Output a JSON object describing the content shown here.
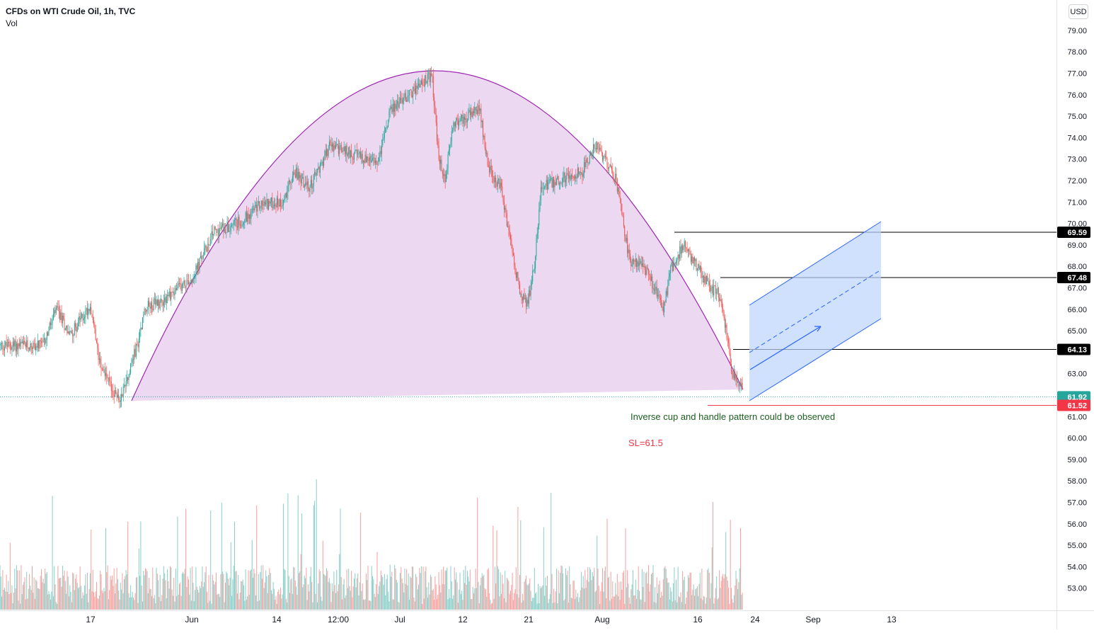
{
  "header": {
    "title": "CFDs on WTI Crude Oil, 1h, TVC",
    "indicator": "Vol",
    "currency_button": "USD"
  },
  "colors": {
    "up": "#26a69a",
    "down": "#ef5350",
    "cup_fill": "#e1bee7",
    "cup_stroke": "#9c27b0",
    "channel_fill": "#bbd4fc",
    "channel_stroke": "#2962ff",
    "line": "#000000",
    "sl_line": "#f23645",
    "current_label": "#26a69a",
    "sl_label": "#f23645",
    "annotation_text": "#1b5e20",
    "sl_text": "#f23645"
  },
  "chart_data": {
    "type": "candlestick",
    "title": "CFDs on WTI Crude Oil, 1h, TVC",
    "yaxis": {
      "range": [
        52.0,
        80.0
      ],
      "ticks": [
        53,
        54,
        55,
        56,
        57,
        58,
        59,
        60,
        61,
        62,
        63,
        64,
        65,
        66,
        67,
        68,
        69,
        70,
        71,
        72,
        73,
        74,
        75,
        76,
        77,
        78,
        79
      ]
    },
    "xaxis": {
      "ticks": [
        "17",
        "Jun",
        "14",
        "12:00",
        "Jul",
        "12",
        "21",
        "Aug",
        "16",
        "24",
        "Sep",
        "13"
      ]
    },
    "price_path": [
      [
        "2021-05-10",
        64.3
      ],
      [
        "2021-05-12",
        66.0
      ],
      [
        "2021-05-14",
        64.8
      ],
      [
        "2021-05-17",
        66.2
      ],
      [
        "2021-05-18",
        64.0
      ],
      [
        "2021-05-19",
        63.1
      ],
      [
        "2021-05-20",
        62.3
      ],
      [
        "2021-05-21",
        61.9
      ],
      [
        "2021-05-21",
        61.5
      ],
      [
        "2021-05-24",
        64.5
      ],
      [
        "2021-05-25",
        66.1
      ],
      [
        "2021-05-27",
        66.3
      ],
      [
        "2021-06-01",
        67.5
      ],
      [
        "2021-06-04",
        69.6
      ],
      [
        "2021-06-08",
        70.1
      ],
      [
        "2021-06-11",
        70.9
      ],
      [
        "2021-06-14",
        71.0
      ],
      [
        "2021-06-16",
        72.4
      ],
      [
        "2021-06-18",
        71.6
      ],
      [
        "2021-06-21",
        73.6
      ],
      [
        "2021-06-24",
        73.3
      ],
      [
        "2021-06-28",
        72.8
      ],
      [
        "2021-06-30",
        75.3
      ],
      [
        "2021-07-01",
        75.6
      ],
      [
        "2021-07-06",
        76.9
      ],
      [
        "2021-07-07",
        73.0
      ],
      [
        "2021-07-08",
        72.0
      ],
      [
        "2021-07-09",
        74.6
      ],
      [
        "2021-07-13",
        75.3
      ],
      [
        "2021-07-14",
        73.2
      ],
      [
        "2021-07-15",
        71.9
      ],
      [
        "2021-07-16",
        71.8
      ],
      [
        "2021-07-19",
        66.6
      ],
      [
        "2021-07-20",
        66.2
      ],
      [
        "2021-07-21",
        68.0
      ],
      [
        "2021-07-22",
        71.7
      ],
      [
        "2021-07-26",
        72.2
      ],
      [
        "2021-07-28",
        72.4
      ],
      [
        "2021-07-30",
        73.7
      ],
      [
        "2021-08-02",
        72.0
      ],
      [
        "2021-08-04",
        68.2
      ],
      [
        "2021-08-06",
        68.1
      ],
      [
        "2021-08-09",
        66.0
      ],
      [
        "2021-08-10",
        67.9
      ],
      [
        "2021-08-12",
        69.1
      ],
      [
        "2021-08-13",
        68.4
      ],
      [
        "2021-08-16",
        66.9
      ],
      [
        "2021-08-17",
        66.8
      ],
      [
        "2021-08-18",
        65.2
      ],
      [
        "2021-08-19",
        63.1
      ],
      [
        "2021-08-20",
        62.3
      ]
    ],
    "volume": {
      "shape": "per-bar volume histogram in lower pane"
    },
    "levels": [
      {
        "label": "69.59",
        "value": 69.59
      },
      {
        "label": "67.48",
        "value": 67.48
      },
      {
        "label": "64.13",
        "value": 64.13
      }
    ],
    "current_price": {
      "label": "61.92",
      "value": 61.92
    },
    "stop_loss": {
      "label": "61.52",
      "value": 61.52
    },
    "annotations": [
      "Inverse cup and handle pattern could be observed",
      "SL=61.5"
    ],
    "legend": "none",
    "grid": false
  }
}
